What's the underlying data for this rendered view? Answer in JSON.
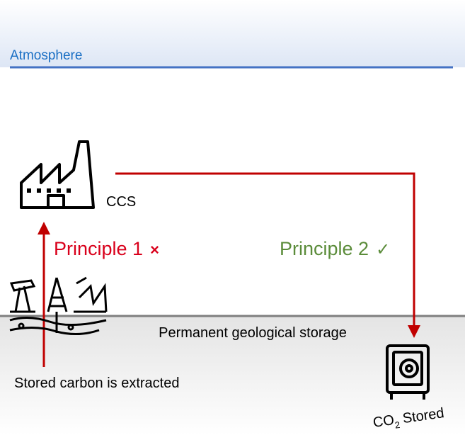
{
  "zones": {
    "atmosphere": "Atmosphere",
    "storage": "Permanent geological storage"
  },
  "nodes": [
    {
      "label": "CCS"
    },
    {
      "label": "Stored carbon is extracted"
    },
    {
      "label_main": "CO",
      "label_sub": "2",
      "label_rest": "Stored"
    }
  ],
  "principles": [
    {
      "label": "Principle 1",
      "symbol": "×"
    },
    {
      "label": "Principle 2",
      "symbol": "✓"
    }
  ]
}
